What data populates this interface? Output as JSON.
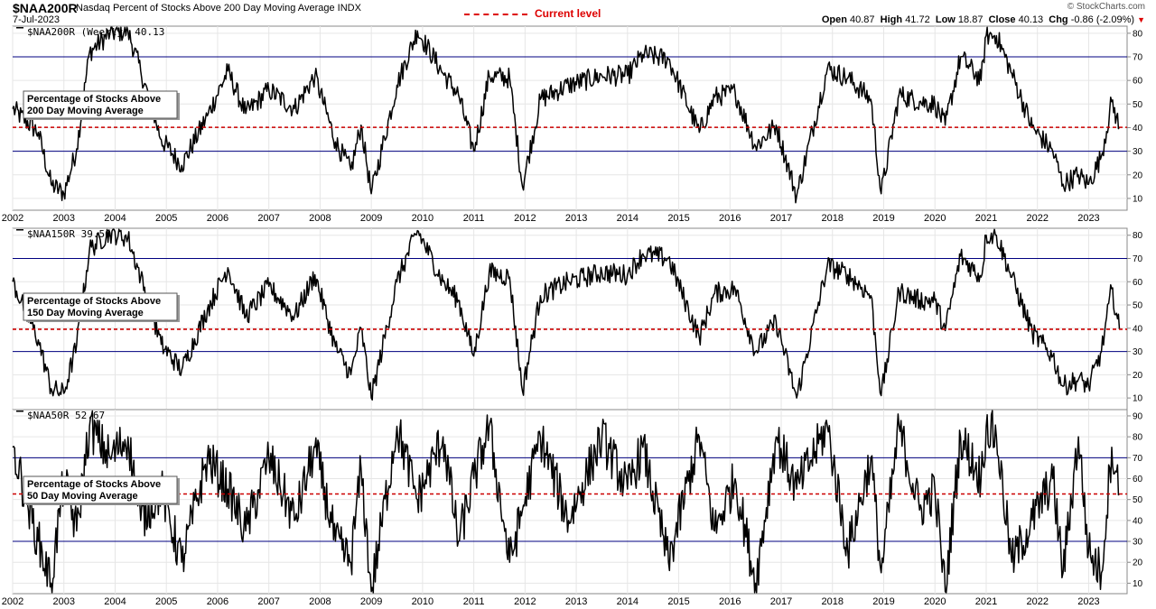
{
  "header": {
    "symbol": "$NAA200R",
    "description": "Nasdaq Percent of Stocks Above 200 Day Moving Average INDX",
    "date": "7-Jul-2023",
    "brand": "© StockCharts.com",
    "open_label": "Open",
    "open": "40.87",
    "high_label": "High",
    "high": "41.72",
    "low_label": "Low",
    "low": "18.87",
    "close_label": "Close",
    "close": "40.13",
    "chg_label": "Chg",
    "chg": "-0.86 (-2.09%)",
    "current_level_label": "Current level"
  },
  "colors": {
    "line": "#000000",
    "reference": "#000080",
    "current": "#cc0000"
  },
  "x_axis_labels": [
    "2002",
    "2003",
    "2004",
    "2005",
    "2006",
    "2007",
    "2008",
    "2009",
    "2010",
    "2011",
    "2012",
    "2013",
    "2014",
    "2015",
    "2016",
    "2017",
    "2018",
    "2019",
    "2020",
    "2021",
    "2022",
    "2023"
  ],
  "chart_data": [
    {
      "type": "line",
      "title": "$NAA200R (Weekly) 40.13",
      "annotation": [
        "Percentage of Stocks Above",
        "200 Day Moving Average"
      ],
      "ylim": [
        5,
        83
      ],
      "yticks": [
        10,
        20,
        30,
        40,
        50,
        60,
        70,
        80
      ],
      "ytick_labels": [
        "10",
        "20",
        "30",
        "40",
        "50",
        "60",
        "70",
        "80"
      ],
      "reference_lines": [
        30,
        70
      ],
      "current_level": 40.13,
      "x": [
        2002.0,
        2002.5,
        2002.75,
        2003.0,
        2003.25,
        2003.5,
        2003.9,
        2004.25,
        2004.5,
        2004.9,
        2005.3,
        2005.8,
        2006.2,
        2006.55,
        2007.0,
        2007.5,
        2007.9,
        2008.3,
        2008.6,
        2008.8,
        2009.0,
        2009.5,
        2009.9,
        2010.4,
        2010.7,
        2011.0,
        2011.3,
        2011.7,
        2011.95,
        2012.3,
        2012.85,
        2013.5,
        2014.0,
        2014.3,
        2014.8,
        2015.4,
        2015.7,
        2016.1,
        2016.5,
        2016.9,
        2017.3,
        2017.9,
        2018.3,
        2018.75,
        2018.95,
        2019.3,
        2019.7,
        2020.0,
        2020.2,
        2020.5,
        2020.9,
        2021.0,
        2021.2,
        2021.5,
        2021.9,
        2022.3,
        2022.5,
        2022.8,
        2023.0,
        2023.25,
        2023.45,
        2023.6
      ],
      "values": [
        48,
        38,
        16,
        12,
        31,
        72,
        80,
        81,
        64,
        35,
        24,
        45,
        64,
        46,
        56,
        48,
        62,
        34,
        22,
        41,
        12,
        58,
        81,
        63,
        54,
        30,
        62,
        61,
        15,
        52,
        58,
        62,
        62,
        71,
        69,
        38,
        53,
        55,
        32,
        41,
        11,
        65,
        61,
        52,
        12,
        54,
        51,
        50,
        41,
        70,
        60,
        79,
        79,
        63,
        40,
        30,
        16,
        20,
        16,
        28,
        51,
        40.13
      ]
    },
    {
      "type": "line",
      "title": "$NAA150R 39.56",
      "annotation": [
        "Percentage of Stocks Above",
        "150 Day Moving Average"
      ],
      "ylim": [
        5,
        83
      ],
      "yticks": [
        10,
        20,
        30,
        40,
        50,
        60,
        70,
        80
      ],
      "ytick_labels": [
        "10",
        "20",
        "30",
        "40",
        "50",
        "60",
        "70",
        "80"
      ],
      "reference_lines": [
        30,
        70
      ],
      "current_level": 39.56,
      "x": [
        2002.0,
        2002.5,
        2002.75,
        2003.0,
        2003.25,
        2003.5,
        2003.9,
        2004.25,
        2004.5,
        2004.9,
        2005.3,
        2005.8,
        2006.2,
        2006.55,
        2007.0,
        2007.5,
        2007.9,
        2008.3,
        2008.6,
        2008.8,
        2009.0,
        2009.5,
        2009.9,
        2010.4,
        2010.7,
        2011.0,
        2011.3,
        2011.7,
        2011.95,
        2012.3,
        2012.85,
        2013.5,
        2014.0,
        2014.3,
        2014.8,
        2015.4,
        2015.7,
        2016.1,
        2016.5,
        2016.9,
        2017.3,
        2017.9,
        2018.3,
        2018.75,
        2018.95,
        2019.3,
        2019.7,
        2020.0,
        2020.2,
        2020.5,
        2020.9,
        2021.0,
        2021.2,
        2021.5,
        2021.9,
        2022.3,
        2022.5,
        2022.8,
        2023.0,
        2023.25,
        2023.45,
        2023.6
      ],
      "values": [
        60,
        35,
        14,
        12,
        33,
        74,
        81,
        79,
        62,
        33,
        22,
        48,
        66,
        45,
        58,
        45,
        63,
        32,
        20,
        40,
        10,
        60,
        82,
        60,
        52,
        28,
        64,
        62,
        13,
        54,
        60,
        64,
        63,
        72,
        70,
        36,
        55,
        57,
        30,
        43,
        10,
        67,
        63,
        54,
        11,
        56,
        52,
        52,
        39,
        71,
        62,
        80,
        80,
        62,
        38,
        28,
        15,
        18,
        15,
        30,
        57,
        39.56
      ]
    },
    {
      "type": "line",
      "title": "$NAA50R 52.67",
      "annotation": [
        "Percentage of Stocks Above",
        "50 Day Moving Average"
      ],
      "ylim": [
        5,
        93
      ],
      "yticks": [
        10,
        20,
        30,
        40,
        50,
        60,
        70,
        80,
        90
      ],
      "ytick_labels": [
        "10",
        "20",
        "30",
        "40",
        "50",
        "60",
        "70",
        "80",
        "90"
      ],
      "reference_lines": [
        30,
        70
      ],
      "current_level": 52.67,
      "x": [
        2002.0,
        2002.5,
        2002.75,
        2003.0,
        2003.25,
        2003.5,
        2003.9,
        2004.25,
        2004.5,
        2004.9,
        2005.3,
        2005.8,
        2006.2,
        2006.55,
        2007.0,
        2007.5,
        2007.9,
        2008.3,
        2008.6,
        2008.8,
        2009.0,
        2009.5,
        2009.9,
        2010.4,
        2010.7,
        2011.0,
        2011.3,
        2011.7,
        2011.95,
        2012.3,
        2012.85,
        2013.5,
        2014.0,
        2014.3,
        2014.8,
        2015.4,
        2015.7,
        2016.1,
        2016.5,
        2016.9,
        2017.3,
        2017.9,
        2018.3,
        2018.75,
        2018.95,
        2019.3,
        2019.7,
        2020.0,
        2020.2,
        2020.5,
        2020.9,
        2021.0,
        2021.2,
        2021.5,
        2021.9,
        2022.3,
        2022.5,
        2022.8,
        2023.0,
        2023.25,
        2023.45,
        2023.6
      ],
      "values": [
        75,
        30,
        10,
        60,
        35,
        85,
        70,
        80,
        40,
        55,
        20,
        70,
        55,
        35,
        70,
        40,
        75,
        30,
        20,
        65,
        6,
        85,
        50,
        80,
        30,
        60,
        85,
        20,
        45,
        80,
        40,
        80,
        55,
        75,
        20,
        80,
        35,
        60,
        10,
        80,
        55,
        85,
        25,
        70,
        15,
        85,
        45,
        55,
        6,
        80,
        60,
        85,
        80,
        20,
        40,
        60,
        15,
        80,
        25,
        15,
        75,
        52.67
      ]
    }
  ]
}
